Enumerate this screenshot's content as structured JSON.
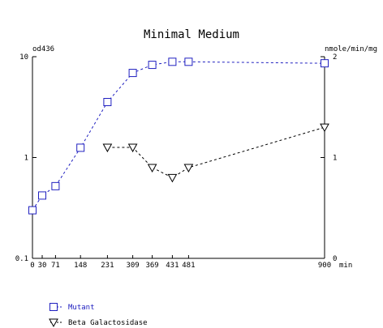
{
  "chart_data": {
    "type": "line",
    "title": "Minimal Medium",
    "left_axis_label": "od436",
    "right_axis_label": "nmole/min/mg",
    "x_unit": "min",
    "left_axis": {
      "scale": "log",
      "ylim": [
        0.1,
        10
      ],
      "ticks": [
        10,
        1,
        0.1
      ],
      "tick_labels": [
        "10",
        "1",
        "0.1"
      ]
    },
    "right_axis": {
      "scale": "linear",
      "ylim": [
        0,
        2
      ],
      "ticks": [
        2,
        1,
        0
      ],
      "tick_labels": [
        "2",
        "1",
        "0"
      ]
    },
    "xlim": [
      0,
      900
    ],
    "x_ticks": [
      0,
      30,
      71,
      148,
      231,
      309,
      369,
      431,
      481,
      900
    ],
    "x_tick_labels": [
      "0",
      "30",
      "71",
      "148",
      "231",
      "309",
      "369",
      "431",
      "481",
      "900"
    ],
    "grid": false,
    "legend_position": "bottom-left",
    "series": [
      {
        "name": "Mutant",
        "axis": "left",
        "marker": "square",
        "color": "#2020c0",
        "line_style": "dashed",
        "x": [
          0,
          30,
          71,
          148,
          231,
          309,
          369,
          431,
          481,
          900
        ],
        "y": [
          0.3,
          0.42,
          0.52,
          1.25,
          3.55,
          6.9,
          8.3,
          8.9,
          8.9,
          8.6
        ]
      },
      {
        "name": "Beta Galactosidase",
        "axis": "right",
        "marker": "triangle-down",
        "color": "#000000",
        "line_style": "dashed",
        "x": [
          231,
          309,
          369,
          431,
          481,
          900
        ],
        "y": [
          1.1,
          1.1,
          0.9,
          0.8,
          0.9,
          1.3
        ]
      }
    ]
  }
}
